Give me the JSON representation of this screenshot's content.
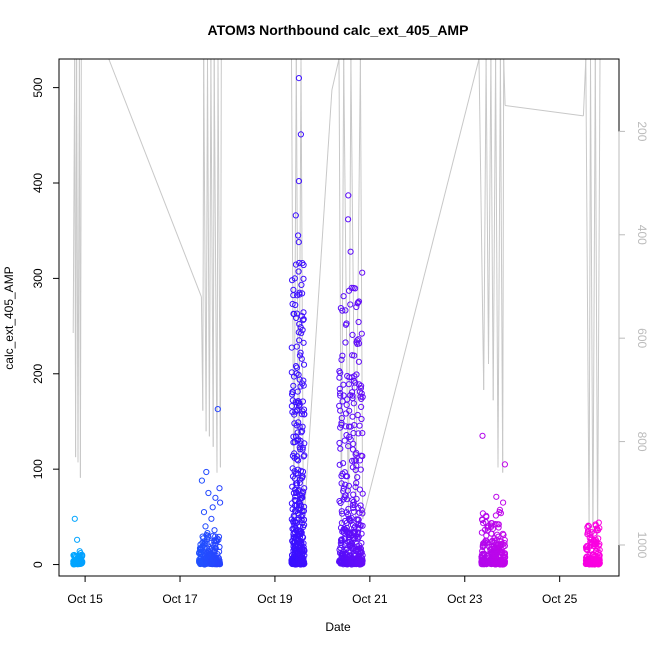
{
  "chart_data": {
    "type": "scatter",
    "title": "ATOM3 Northbound calc_ext_405_AMP",
    "xlabel": "Date",
    "ylabel": "calc_ext_405_AMP",
    "x_ticks": [
      "Oct 15",
      "Oct 17",
      "Oct 19",
      "Oct 21",
      "Oct 23",
      "Oct 25"
    ],
    "x_tick_days": [
      15,
      17,
      19,
      21,
      23,
      25
    ],
    "xlim_days": [
      14.45,
      26.25
    ],
    "ylim": [
      -12,
      530
    ],
    "y_ticks": [
      0,
      100,
      200,
      300,
      400,
      500
    ],
    "y2_ticks": [
      200,
      400,
      600,
      800,
      1000
    ],
    "y2lim": [
      60,
      1060
    ],
    "y2_reversed": true,
    "grid": false,
    "point_color_start": "#00a8ff",
    "point_color_mid": "#3a10ff",
    "point_color_end": "#ff00e0",
    "depth_line_color": "#c8c8c8",
    "clusters": [
      {
        "day_start": 14.75,
        "day_end": 14.95,
        "n": 80,
        "vmax": 12,
        "spikes": [
          48,
          26,
          14,
          10
        ]
      },
      {
        "day_start": 17.4,
        "day_end": 17.85,
        "n": 220,
        "vmax": 30,
        "spikes": [
          163,
          97,
          88,
          80,
          75,
          70,
          65,
          60,
          55,
          48,
          40,
          36,
          33
        ]
      },
      {
        "day_start": 19.35,
        "day_end": 19.62,
        "n": 420,
        "vmax": 320,
        "spikes": [
          510,
          451,
          402,
          366,
          345,
          338,
          316
        ]
      },
      {
        "day_start": 20.35,
        "day_end": 20.85,
        "n": 420,
        "vmax": 300,
        "spikes": [
          387,
          362,
          328,
          306,
          290
        ]
      },
      {
        "day_start": 23.35,
        "day_end": 23.85,
        "n": 260,
        "vmax": 55,
        "spikes": [
          135,
          105,
          71,
          65
        ]
      },
      {
        "day_start": 25.55,
        "day_end": 25.85,
        "n": 150,
        "vmax": 40,
        "spikes": [
          44,
          42,
          38
        ]
      }
    ],
    "depth_profile": [
      {
        "day": 14.75,
        "depth": 590
      },
      {
        "day": 14.78,
        "depth": 60
      },
      {
        "day": 14.8,
        "depth": 830
      },
      {
        "day": 14.82,
        "depth": 60
      },
      {
        "day": 14.85,
        "depth": 840
      },
      {
        "day": 14.88,
        "depth": 60
      },
      {
        "day": 14.9,
        "depth": 870
      },
      {
        "day": 14.92,
        "depth": 60
      },
      {
        "day": 15.5,
        "depth": 60
      },
      {
        "day": 17.45,
        "depth": 520
      },
      {
        "day": 17.48,
        "depth": 740
      },
      {
        "day": 17.5,
        "depth": 60
      },
      {
        "day": 17.55,
        "depth": 780
      },
      {
        "day": 17.58,
        "depth": 60
      },
      {
        "day": 17.62,
        "depth": 790
      },
      {
        "day": 17.65,
        "depth": 60
      },
      {
        "day": 17.7,
        "depth": 810
      },
      {
        "day": 17.72,
        "depth": 60
      },
      {
        "day": 17.78,
        "depth": 860
      },
      {
        "day": 17.8,
        "depth": 60
      },
      {
        "day": 17.85,
        "depth": 850
      },
      {
        "day": 17.87,
        "depth": 60
      },
      {
        "day": 19.2,
        "depth": 60
      },
      {
        "day": 19.35,
        "depth": 60
      },
      {
        "day": 19.4,
        "depth": 950
      },
      {
        "day": 19.45,
        "depth": 60
      },
      {
        "day": 19.5,
        "depth": 960
      },
      {
        "day": 19.55,
        "depth": 60
      },
      {
        "day": 19.6,
        "depth": 970
      },
      {
        "day": 20.2,
        "depth": 120
      },
      {
        "day": 20.35,
        "depth": 60
      },
      {
        "day": 20.4,
        "depth": 960
      },
      {
        "day": 20.45,
        "depth": 60
      },
      {
        "day": 20.55,
        "depth": 970
      },
      {
        "day": 20.6,
        "depth": 60
      },
      {
        "day": 20.7,
        "depth": 960
      },
      {
        "day": 20.8,
        "depth": 60
      },
      {
        "day": 20.85,
        "depth": 950
      },
      {
        "day": 23.3,
        "depth": 60
      },
      {
        "day": 23.4,
        "depth": 700
      },
      {
        "day": 23.45,
        "depth": 60
      },
      {
        "day": 23.5,
        "depth": 650
      },
      {
        "day": 23.55,
        "depth": 60
      },
      {
        "day": 23.6,
        "depth": 720
      },
      {
        "day": 23.65,
        "depth": 60
      },
      {
        "day": 23.7,
        "depth": 850
      },
      {
        "day": 23.75,
        "depth": 60
      },
      {
        "day": 23.8,
        "depth": 860
      },
      {
        "day": 23.82,
        "depth": 60
      },
      {
        "day": 23.85,
        "depth": 150
      },
      {
        "day": 25.5,
        "depth": 170
      },
      {
        "day": 25.55,
        "depth": 60
      },
      {
        "day": 25.62,
        "depth": 980
      },
      {
        "day": 25.65,
        "depth": 60
      },
      {
        "day": 25.7,
        "depth": 990
      },
      {
        "day": 25.75,
        "depth": 60
      },
      {
        "day": 25.8,
        "depth": 1000
      },
      {
        "day": 25.85,
        "depth": 60
      }
    ]
  }
}
